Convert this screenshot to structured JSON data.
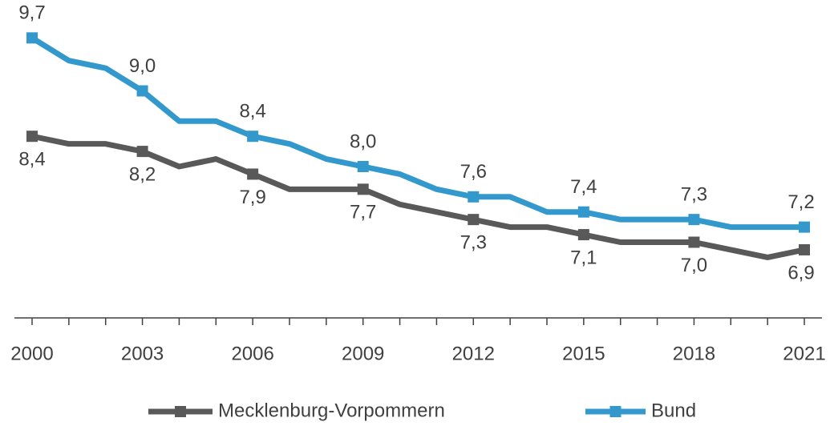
{
  "chart_data": {
    "type": "line",
    "categories": [
      "2000",
      null,
      null,
      "2003",
      null,
      null,
      "2006",
      null,
      null,
      "2009",
      null,
      null,
      "2012",
      null,
      null,
      "2015",
      null,
      null,
      "2018",
      null,
      null,
      "2021"
    ],
    "series": [
      {
        "name": "Mecklenburg-Vorpommern",
        "color": "#595959",
        "values": [
          8.4,
          8.3,
          8.3,
          8.2,
          8.0,
          8.1,
          7.9,
          7.7,
          7.7,
          7.7,
          7.5,
          7.4,
          7.3,
          7.2,
          7.2,
          7.1,
          7.0,
          7.0,
          7.0,
          6.9,
          6.8,
          6.9
        ],
        "value_labels": [
          "8,4",
          null,
          null,
          "8,2",
          null,
          null,
          "7,9",
          null,
          null,
          "7,7",
          null,
          null,
          "7,3",
          null,
          null,
          "7,1",
          null,
          null,
          "7,0",
          null,
          null,
          "6,9"
        ]
      },
      {
        "name": "Bund",
        "color": "#3399cc",
        "values": [
          9.7,
          9.4,
          9.3,
          9.0,
          8.6,
          8.6,
          8.4,
          8.3,
          8.1,
          8.0,
          7.9,
          7.7,
          7.6,
          7.6,
          7.4,
          7.4,
          7.3,
          7.3,
          7.3,
          7.2,
          7.2,
          7.2
        ],
        "value_labels": [
          "9,7",
          null,
          null,
          "9,0",
          null,
          null,
          "8,4",
          null,
          null,
          "8,0",
          null,
          null,
          "7,6",
          null,
          null,
          "7,4",
          null,
          null,
          "7,3",
          null,
          null,
          "7,2"
        ]
      }
    ],
    "ylim": [
      6.0,
      10.0
    ],
    "legend": "bottom"
  }
}
